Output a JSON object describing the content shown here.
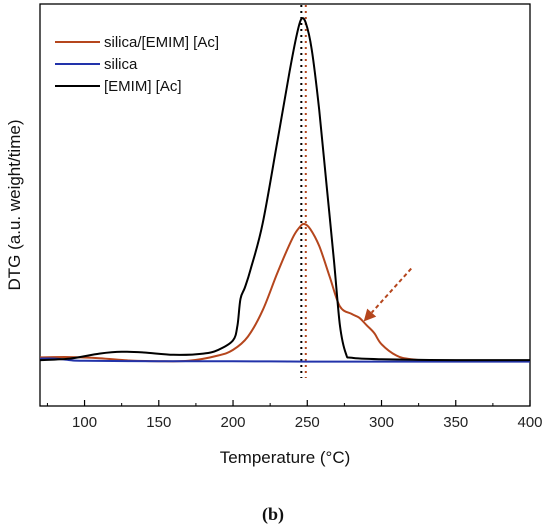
{
  "chart_data": {
    "type": "line",
    "title": "",
    "xlabel": "Temperature (°C)",
    "ylabel": "DTG (a.u. weight/time)",
    "xlim": [
      70,
      400
    ],
    "ylim": [
      0,
      1
    ],
    "x_ticks": [
      100,
      150,
      200,
      250,
      300,
      350,
      400
    ],
    "y_ticks_shown": false,
    "grid": false,
    "legend_position": "top-left",
    "panel_label": "(b)",
    "series": [
      {
        "name": "silica/[EMIM] [Ac]",
        "color": "#b5461d",
        "points": [
          [
            70,
            0.065
          ],
          [
            90,
            0.066
          ],
          [
            110,
            0.063
          ],
          [
            130,
            0.057
          ],
          [
            150,
            0.055
          ],
          [
            170,
            0.056
          ],
          [
            190,
            0.07
          ],
          [
            200,
            0.085
          ],
          [
            210,
            0.12
          ],
          [
            220,
            0.19
          ],
          [
            230,
            0.29
          ],
          [
            240,
            0.38
          ],
          [
            245,
            0.41
          ],
          [
            248,
            0.418
          ],
          [
            252,
            0.405
          ],
          [
            258,
            0.36
          ],
          [
            265,
            0.28
          ],
          [
            272,
            0.2
          ],
          [
            280,
            0.18
          ],
          [
            285,
            0.17
          ],
          [
            290,
            0.15
          ],
          [
            295,
            0.13
          ],
          [
            300,
            0.1
          ],
          [
            310,
            0.07
          ],
          [
            320,
            0.06
          ],
          [
            340,
            0.055
          ],
          [
            360,
            0.055
          ],
          [
            380,
            0.055
          ],
          [
            400,
            0.055
          ]
        ]
      },
      {
        "name": "silica",
        "color": "#2233aa",
        "points": [
          [
            70,
            0.062
          ],
          [
            80,
            0.062
          ],
          [
            90,
            0.058
          ],
          [
            100,
            0.056
          ],
          [
            150,
            0.055
          ],
          [
            200,
            0.055
          ],
          [
            250,
            0.054
          ],
          [
            300,
            0.054
          ],
          [
            350,
            0.054
          ],
          [
            400,
            0.054
          ]
        ]
      },
      {
        "name": "[EMIM] [Ac]",
        "color": "#000000",
        "points": [
          [
            70,
            0.058
          ],
          [
            90,
            0.062
          ],
          [
            110,
            0.075
          ],
          [
            125,
            0.08
          ],
          [
            140,
            0.078
          ],
          [
            160,
            0.072
          ],
          [
            180,
            0.075
          ],
          [
            190,
            0.085
          ],
          [
            200,
            0.11
          ],
          [
            203,
            0.15
          ],
          [
            205,
            0.22
          ],
          [
            208,
            0.25
          ],
          [
            212,
            0.3
          ],
          [
            220,
            0.42
          ],
          [
            230,
            0.64
          ],
          [
            238,
            0.82
          ],
          [
            243,
            0.92
          ],
          [
            246,
            0.96
          ],
          [
            249,
            0.95
          ],
          [
            253,
            0.88
          ],
          [
            258,
            0.72
          ],
          [
            263,
            0.52
          ],
          [
            268,
            0.32
          ],
          [
            272,
            0.15
          ],
          [
            276,
            0.075
          ],
          [
            280,
            0.064
          ],
          [
            300,
            0.06
          ],
          [
            350,
            0.058
          ],
          [
            400,
            0.058
          ]
        ]
      }
    ],
    "annotations": {
      "vertical_lines": [
        {
          "x": 246,
          "color": "#000000",
          "style": "dotted"
        },
        {
          "x": 249,
          "color": "#b5461d",
          "style": "dotted"
        }
      ],
      "arrow": {
        "from": [
          320,
          0.3
        ],
        "to": [
          288,
          0.16
        ],
        "color": "#b5461d",
        "style": "dashed"
      }
    }
  }
}
